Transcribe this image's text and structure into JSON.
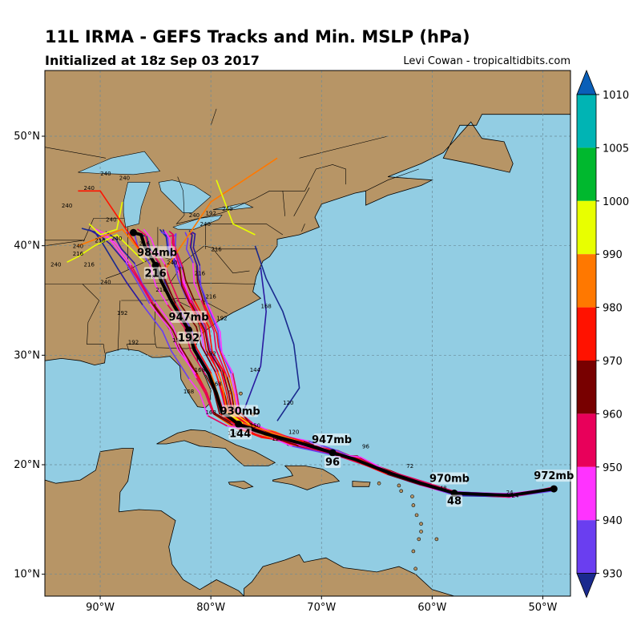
{
  "header": {
    "title": "11L IRMA - GEFS Tracks and Min. MSLP (hPa)",
    "subtitle": "Initialized at 18z Sep 03 2017",
    "credit": "Levi Cowan - tropicaltidbits.com"
  },
  "map": {
    "lon_range": [
      -95,
      -47.5
    ],
    "lat_range": [
      8,
      56
    ],
    "lon_ticks": [
      "90°W",
      "80°W",
      "70°W",
      "60°W",
      "50°W"
    ],
    "lat_ticks": [
      "10°N",
      "20°N",
      "30°N",
      "40°N",
      "50°N"
    ],
    "colors": {
      "ocean": "#92cde3",
      "land": "#b79566",
      "border": "#000000"
    }
  },
  "colorbar": {
    "ticks": [
      "930",
      "940",
      "950",
      "960",
      "970",
      "980",
      "990",
      "1000",
      "1005",
      "1010"
    ],
    "colors": [
      "#1a2a8e",
      "#6a3ef0",
      "#ff33ff",
      "#e8005a",
      "#780000",
      "#ff1200",
      "#ff7800",
      "#e8ff00",
      "#00b82e",
      "#00b4b4",
      "#0a5fb8"
    ]
  },
  "chart_data": {
    "type": "map-tracks",
    "mean_track": [
      [
        -49,
        17.8
      ],
      [
        -53,
        17.2
      ],
      [
        -58,
        17.4
      ],
      [
        -61,
        18.3
      ],
      [
        -64,
        19.3
      ],
      [
        -67,
        20.5
      ],
      [
        -69,
        21.1
      ],
      [
        -72,
        22.0
      ],
      [
        -75,
        22.8
      ],
      [
        -77.5,
        23.7
      ],
      [
        -79,
        24.8
      ],
      [
        -79.5,
        26.5
      ],
      [
        -80.2,
        28.3
      ],
      [
        -81.5,
        30.5
      ],
      [
        -82,
        32.3
      ],
      [
        -83.5,
        34.8
      ],
      [
        -84.5,
        36.8
      ],
      [
        -85,
        38.2
      ],
      [
        -86,
        40
      ],
      [
        -86.3,
        41
      ],
      [
        -87,
        41.2
      ]
    ],
    "annotations": [
      {
        "lon": -49,
        "lat": 17.8,
        "label": "972mb",
        "dx": 0,
        "dy": -14
      },
      {
        "lon": -58,
        "lat": 17.4,
        "label": "970mb",
        "dx": -6,
        "dy": -16
      },
      {
        "lon": -58,
        "lat": 17.4,
        "label": "48",
        "dx": 0,
        "dy": 12
      },
      {
        "lon": -69,
        "lat": 21.1,
        "label": "947mb",
        "dx": -1,
        "dy": -14
      },
      {
        "lon": -69,
        "lat": 21.1,
        "label": "96",
        "dx": 0,
        "dy": 14
      },
      {
        "lon": -77.5,
        "lat": 23.7,
        "label": "930mb",
        "dx": 2,
        "dy": -14
      },
      {
        "lon": -77.5,
        "lat": 23.7,
        "label": "144",
        "dx": 2,
        "dy": 14
      },
      {
        "lon": -82,
        "lat": 32.3,
        "label": "947mb",
        "dx": 0,
        "dy": -14
      },
      {
        "lon": -82,
        "lat": 32.3,
        "label": "192",
        "dx": 0,
        "dy": 12
      },
      {
        "lon": -85,
        "lat": 38.2,
        "label": "984mb",
        "dx": 2,
        "dy": -14
      },
      {
        "lon": -85,
        "lat": 38.2,
        "label": "216",
        "dx": 0,
        "dy": 12
      }
    ],
    "small_labels": [
      {
        "lon": -66,
        "lat": 21.5,
        "t": "96"
      },
      {
        "lon": -72.5,
        "lat": 22.8,
        "t": "120"
      },
      {
        "lon": -74,
        "lat": 22.2,
        "t": "120"
      },
      {
        "lon": -76,
        "lat": 23.4,
        "t": "150"
      },
      {
        "lon": -78,
        "lat": 22.7,
        "t": "144"
      },
      {
        "lon": -80,
        "lat": 24.6,
        "t": "168"
      },
      {
        "lon": -79.5,
        "lat": 27.2,
        "t": "168"
      },
      {
        "lon": -81,
        "lat": 28.5,
        "t": "168"
      },
      {
        "lon": -82,
        "lat": 26.5,
        "t": "168"
      },
      {
        "lon": -73,
        "lat": 25.5,
        "t": "120"
      },
      {
        "lon": -76,
        "lat": 28.5,
        "t": "144"
      },
      {
        "lon": -80,
        "lat": 30,
        "t": "192"
      },
      {
        "lon": -83,
        "lat": 31.2,
        "t": "192"
      },
      {
        "lon": -79,
        "lat": 33.2,
        "t": "192"
      },
      {
        "lon": -75,
        "lat": 34.3,
        "t": "168"
      },
      {
        "lon": -88,
        "lat": 33.7,
        "t": "192"
      },
      {
        "lon": -87,
        "lat": 31,
        "t": "192"
      },
      {
        "lon": -80,
        "lat": 35.2,
        "t": "216"
      },
      {
        "lon": -84.5,
        "lat": 35.8,
        "t": "216"
      },
      {
        "lon": -81,
        "lat": 37.3,
        "t": "216"
      },
      {
        "lon": -85.5,
        "lat": 37,
        "t": "216"
      },
      {
        "lon": -79.5,
        "lat": 39.5,
        "t": "216"
      },
      {
        "lon": -86,
        "lat": 40,
        "t": "216"
      },
      {
        "lon": -90,
        "lat": 40.3,
        "t": "216"
      },
      {
        "lon": -92,
        "lat": 39.1,
        "t": "216"
      },
      {
        "lon": -91,
        "lat": 38.1,
        "t": "216"
      },
      {
        "lon": -83.5,
        "lat": 38.3,
        "t": "240"
      },
      {
        "lon": -94,
        "lat": 38.1,
        "t": "240"
      },
      {
        "lon": -89.5,
        "lat": 36.5,
        "t": "240"
      },
      {
        "lon": -92,
        "lat": 39.8,
        "t": "240"
      },
      {
        "lon": -88.5,
        "lat": 40.5,
        "t": "240"
      },
      {
        "lon": -80.5,
        "lat": 41.8,
        "t": "240"
      },
      {
        "lon": -81.5,
        "lat": 42.6,
        "t": "240"
      },
      {
        "lon": -78.5,
        "lat": 43.2,
        "t": "240"
      },
      {
        "lon": -89,
        "lat": 42.2,
        "t": "240"
      },
      {
        "lon": -93,
        "lat": 43.5,
        "t": "240"
      },
      {
        "lon": -91,
        "lat": 45.1,
        "t": "240"
      },
      {
        "lon": -89.5,
        "lat": 46.4,
        "t": "240"
      },
      {
        "lon": -87.8,
        "lat": 46,
        "t": "240"
      },
      {
        "lon": -80,
        "lat": 42.8,
        "t": "192"
      },
      {
        "lon": -62,
        "lat": 19.7,
        "t": "72"
      },
      {
        "lon": -59,
        "lat": 17.7,
        "t": "48"
      },
      {
        "lon": -53,
        "lat": 17.3,
        "t": "24"
      },
      {
        "lon": -52.5,
        "lat": 17,
        "t": "24"
      }
    ]
  }
}
